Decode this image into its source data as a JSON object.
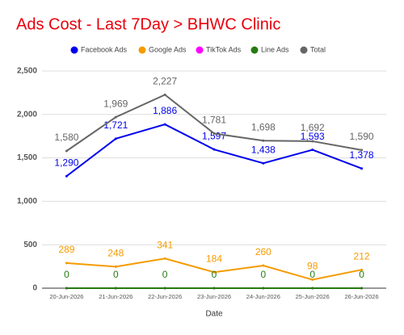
{
  "chart_data": {
    "type": "line",
    "title": "Ads Cost - Last 7Day > BHWC Clinic",
    "x_label": "Date",
    "categories": [
      "20-Jun-2026",
      "21-Jun-2026",
      "22-Jun-2026",
      "23-Jun-2026",
      "24-Jun-2026",
      "25-Jun-2026",
      "26-Jun-2026"
    ],
    "series": [
      {
        "name": "Facebook Ads",
        "color": "#0000ee",
        "values": [
          1290,
          1721,
          1886,
          1597,
          1438,
          1593,
          1378
        ],
        "value_labels": [
          "1,290",
          "1,721",
          "1,886",
          "1,597",
          "1,438",
          "1,593",
          "1,378"
        ]
      },
      {
        "name": "Google Ads",
        "color": "#f59b00",
        "values": [
          289,
          248,
          341,
          184,
          260,
          98,
          212
        ]
      },
      {
        "name": "TikTok Ads",
        "color": "#ff00ff",
        "values": [
          0,
          0,
          0,
          0,
          0,
          0,
          0
        ]
      },
      {
        "name": "Line Ads",
        "color": "#267a12",
        "values": [
          0,
          0,
          0,
          0,
          0,
          0,
          0
        ]
      },
      {
        "name": "Total",
        "color": "#666666",
        "values": [
          1580,
          1969,
          2227,
          1781,
          1698,
          1692,
          1590
        ],
        "value_labels": [
          "1,580",
          "1,969",
          "2,227",
          "1,781",
          "1,698",
          "1,692",
          "1,590"
        ]
      }
    ],
    "ylim": [
      0,
      2500
    ],
    "yticks": [
      0,
      500,
      {
        "value": 1000,
        "label": "1,000"
      },
      {
        "value": 1500,
        "label": "1,500"
      },
      {
        "value": 2000,
        "label": "2,000"
      },
      {
        "value": 2500,
        "label": "2,500"
      }
    ],
    "grid": true
  }
}
